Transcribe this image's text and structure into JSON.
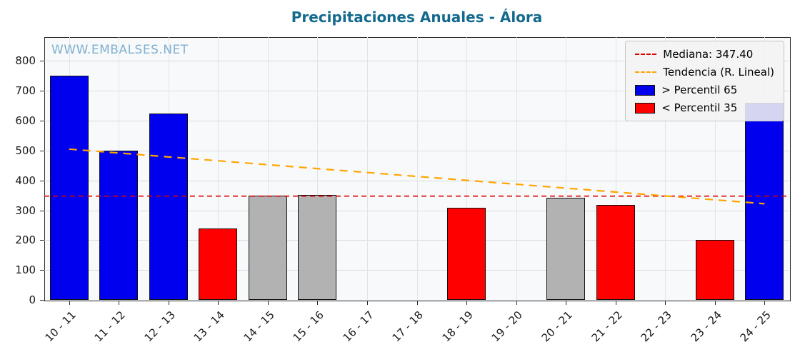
{
  "title": "Precipitaciones Anuales - Álora",
  "watermark": "WWW.EMBALSES.NET",
  "legend": {
    "median_label": "Mediana: 347.40",
    "trend_label": "Tendencia (R. Lineal)",
    "above_label": "> Percentil 65",
    "below_label": "< Percentil 35"
  },
  "colors": {
    "above": "#0000ee",
    "below": "#ff0000",
    "mid": "#b2b2b2",
    "median_line": "#dc0000",
    "trend_line": "#ffa500",
    "title": "#136a8e",
    "watermark": "#7fb0d0"
  },
  "chart_data": {
    "type": "bar",
    "title": "Precipitaciones Anuales - Álora",
    "categories": [
      "10 - 11",
      "11 - 12",
      "12 - 13",
      "13 - 14",
      "14 - 15",
      "15 - 16",
      "16 - 17",
      "17 - 18",
      "18 - 19",
      "19 - 20",
      "20 - 21",
      "21 - 22",
      "22 - 23",
      "23 - 24",
      "24 - 25"
    ],
    "values": [
      750,
      500,
      625,
      240,
      348,
      352,
      0,
      0,
      308,
      0,
      343,
      317,
      0,
      200,
      660
    ],
    "bar_classes": [
      "above",
      "above",
      "above",
      "below",
      "mid",
      "mid",
      "none",
      "none",
      "below",
      "none",
      "mid",
      "below",
      "none",
      "below",
      "above"
    ],
    "median": 347.4,
    "trend": {
      "start": 505,
      "end": 322
    },
    "ylim": [
      0,
      880
    ],
    "yticks": [
      0,
      100,
      200,
      300,
      400,
      500,
      600,
      700,
      800
    ],
    "grid": true,
    "legend_position": "upper right",
    "xlabel": "",
    "ylabel": ""
  }
}
